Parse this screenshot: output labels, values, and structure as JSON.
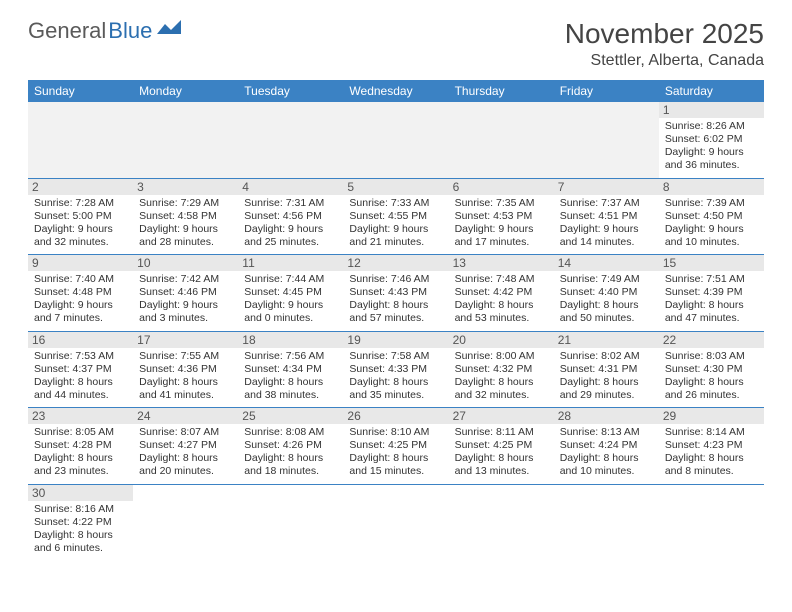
{
  "logo": {
    "part1": "General",
    "part2": "Blue"
  },
  "header": {
    "monthYear": "November 2025",
    "location": "Stettler, Alberta, Canada"
  },
  "headerRowBg": "#3b82c4",
  "dayLabels": [
    "Sunday",
    "Monday",
    "Tuesday",
    "Wednesday",
    "Thursday",
    "Friday",
    "Saturday"
  ],
  "weeks": [
    [
      null,
      null,
      null,
      null,
      null,
      null,
      {
        "n": "1",
        "sr": "8:26 AM",
        "ss": "6:02 PM",
        "dl": "9 hours and 36 minutes."
      }
    ],
    [
      {
        "n": "2",
        "sr": "7:28 AM",
        "ss": "5:00 PM",
        "dl": "9 hours and 32 minutes."
      },
      {
        "n": "3",
        "sr": "7:29 AM",
        "ss": "4:58 PM",
        "dl": "9 hours and 28 minutes."
      },
      {
        "n": "4",
        "sr": "7:31 AM",
        "ss": "4:56 PM",
        "dl": "9 hours and 25 minutes."
      },
      {
        "n": "5",
        "sr": "7:33 AM",
        "ss": "4:55 PM",
        "dl": "9 hours and 21 minutes."
      },
      {
        "n": "6",
        "sr": "7:35 AM",
        "ss": "4:53 PM",
        "dl": "9 hours and 17 minutes."
      },
      {
        "n": "7",
        "sr": "7:37 AM",
        "ss": "4:51 PM",
        "dl": "9 hours and 14 minutes."
      },
      {
        "n": "8",
        "sr": "7:39 AM",
        "ss": "4:50 PM",
        "dl": "9 hours and 10 minutes."
      }
    ],
    [
      {
        "n": "9",
        "sr": "7:40 AM",
        "ss": "4:48 PM",
        "dl": "9 hours and 7 minutes."
      },
      {
        "n": "10",
        "sr": "7:42 AM",
        "ss": "4:46 PM",
        "dl": "9 hours and 3 minutes."
      },
      {
        "n": "11",
        "sr": "7:44 AM",
        "ss": "4:45 PM",
        "dl": "9 hours and 0 minutes."
      },
      {
        "n": "12",
        "sr": "7:46 AM",
        "ss": "4:43 PM",
        "dl": "8 hours and 57 minutes."
      },
      {
        "n": "13",
        "sr": "7:48 AM",
        "ss": "4:42 PM",
        "dl": "8 hours and 53 minutes."
      },
      {
        "n": "14",
        "sr": "7:49 AM",
        "ss": "4:40 PM",
        "dl": "8 hours and 50 minutes."
      },
      {
        "n": "15",
        "sr": "7:51 AM",
        "ss": "4:39 PM",
        "dl": "8 hours and 47 minutes."
      }
    ],
    [
      {
        "n": "16",
        "sr": "7:53 AM",
        "ss": "4:37 PM",
        "dl": "8 hours and 44 minutes."
      },
      {
        "n": "17",
        "sr": "7:55 AM",
        "ss": "4:36 PM",
        "dl": "8 hours and 41 minutes."
      },
      {
        "n": "18",
        "sr": "7:56 AM",
        "ss": "4:34 PM",
        "dl": "8 hours and 38 minutes."
      },
      {
        "n": "19",
        "sr": "7:58 AM",
        "ss": "4:33 PM",
        "dl": "8 hours and 35 minutes."
      },
      {
        "n": "20",
        "sr": "8:00 AM",
        "ss": "4:32 PM",
        "dl": "8 hours and 32 minutes."
      },
      {
        "n": "21",
        "sr": "8:02 AM",
        "ss": "4:31 PM",
        "dl": "8 hours and 29 minutes."
      },
      {
        "n": "22",
        "sr": "8:03 AM",
        "ss": "4:30 PM",
        "dl": "8 hours and 26 minutes."
      }
    ],
    [
      {
        "n": "23",
        "sr": "8:05 AM",
        "ss": "4:28 PM",
        "dl": "8 hours and 23 minutes."
      },
      {
        "n": "24",
        "sr": "8:07 AM",
        "ss": "4:27 PM",
        "dl": "8 hours and 20 minutes."
      },
      {
        "n": "25",
        "sr": "8:08 AM",
        "ss": "4:26 PM",
        "dl": "8 hours and 18 minutes."
      },
      {
        "n": "26",
        "sr": "8:10 AM",
        "ss": "4:25 PM",
        "dl": "8 hours and 15 minutes."
      },
      {
        "n": "27",
        "sr": "8:11 AM",
        "ss": "4:25 PM",
        "dl": "8 hours and 13 minutes."
      },
      {
        "n": "28",
        "sr": "8:13 AM",
        "ss": "4:24 PM",
        "dl": "8 hours and 10 minutes."
      },
      {
        "n": "29",
        "sr": "8:14 AM",
        "ss": "4:23 PM",
        "dl": "8 hours and 8 minutes."
      }
    ],
    [
      {
        "n": "30",
        "sr": "8:16 AM",
        "ss": "4:22 PM",
        "dl": "8 hours and 6 minutes."
      },
      null,
      null,
      null,
      null,
      null,
      null
    ]
  ],
  "labels": {
    "sunrise": "Sunrise:",
    "sunset": "Sunset:",
    "daylight": "Daylight:"
  }
}
